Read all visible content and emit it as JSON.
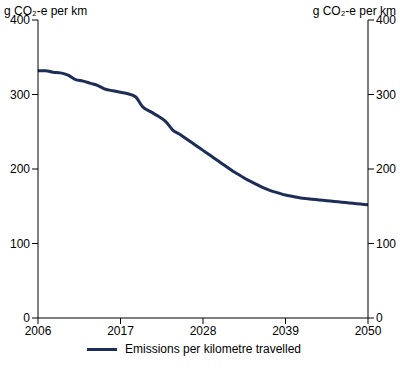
{
  "chart_data": {
    "type": "line",
    "y_label": "g CO₂-e per km",
    "y2_label": "g CO₂-e per km",
    "x": [
      2006,
      2007,
      2008,
      2009,
      2010,
      2011,
      2012,
      2013,
      2014,
      2015,
      2016,
      2017,
      2018,
      2019,
      2020,
      2021,
      2022,
      2023,
      2024,
      2025,
      2026,
      2027,
      2028,
      2029,
      2030,
      2031,
      2032,
      2033,
      2034,
      2035,
      2036,
      2037,
      2038,
      2039,
      2040,
      2041,
      2042,
      2043,
      2044,
      2045,
      2046,
      2047,
      2048,
      2049,
      2050
    ],
    "series": [
      {
        "name": "Emissions per kilometre travelled",
        "color": "#1c2d57",
        "values": [
          332,
          332,
          330,
          329,
          326,
          320,
          318,
          315,
          312,
          307,
          305,
          303,
          301,
          297,
          283,
          277,
          271,
          264,
          252,
          246,
          239,
          232,
          225,
          218,
          211,
          204,
          197,
          191,
          185,
          180,
          175,
          171,
          168,
          165,
          163,
          161,
          160,
          159,
          158,
          157,
          156,
          155,
          154,
          153,
          152
        ]
      }
    ],
    "xlim": [
      2006,
      2050
    ],
    "xticks": [
      2006,
      2017,
      2028,
      2039,
      2050
    ],
    "ylim": [
      0,
      400
    ],
    "yticks": [
      0,
      100,
      200,
      300,
      400
    ],
    "y2lim": [
      0,
      400
    ],
    "y2ticks": [
      0,
      100,
      200,
      300,
      400
    ],
    "grid": false,
    "legend": "bottom"
  }
}
